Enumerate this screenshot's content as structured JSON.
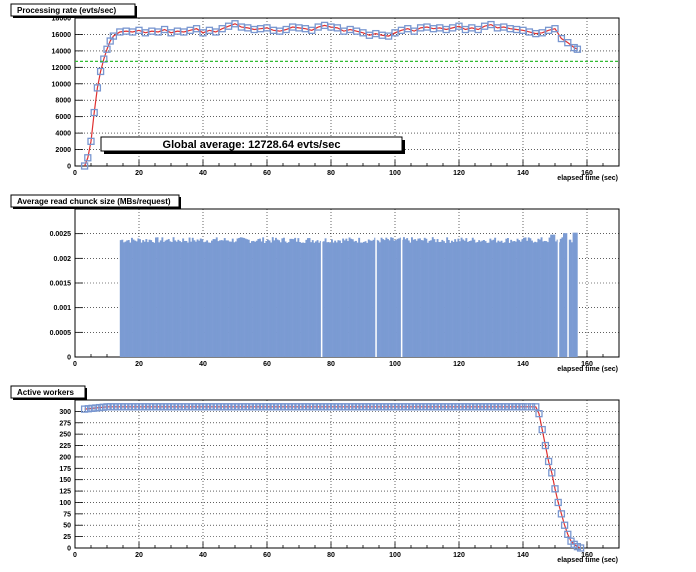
{
  "chart_data": [
    {
      "type": "line",
      "title": "Processing rate (evts/sec)",
      "xlabel": "elapsed time (sec)",
      "xlim": [
        0,
        170
      ],
      "ylim": [
        0,
        18000
      ],
      "xticks": [
        0,
        20,
        40,
        60,
        80,
        100,
        120,
        140,
        160
      ],
      "yticks": [
        0,
        2000,
        4000,
        6000,
        8000,
        10000,
        12000,
        14000,
        16000,
        18000
      ],
      "grid": true,
      "series": [
        {
          "x": [
            3,
            4,
            5,
            6,
            7,
            8,
            9,
            10,
            11,
            12,
            14,
            16,
            18,
            20,
            22,
            24,
            26,
            28,
            30,
            32,
            34,
            36,
            38,
            40,
            42,
            44,
            46,
            48,
            50,
            52,
            54,
            56,
            58,
            60,
            62,
            64,
            66,
            68,
            70,
            72,
            74,
            76,
            78,
            80,
            82,
            84,
            86,
            88,
            90,
            92,
            94,
            96,
            98,
            100,
            102,
            104,
            106,
            108,
            110,
            112,
            114,
            116,
            118,
            120,
            122,
            124,
            126,
            128,
            130,
            132,
            134,
            136,
            138,
            140,
            142,
            144,
            146,
            148,
            150,
            152,
            154,
            156,
            157
          ],
          "y": [
            0,
            1000,
            3000,
            6500,
            9500,
            11500,
            13000,
            14200,
            15200,
            15800,
            16300,
            16400,
            16300,
            16500,
            16200,
            16400,
            16300,
            16600,
            16200,
            16400,
            16300,
            16500,
            16700,
            16200,
            16500,
            16300,
            16700,
            17000,
            17300,
            16900,
            16800,
            16600,
            16700,
            16800,
            16500,
            16400,
            16600,
            16900,
            16800,
            16700,
            16500,
            16900,
            17100,
            16900,
            16800,
            16400,
            16600,
            16400,
            16200,
            15900,
            16100,
            15900,
            15800,
            16200,
            16500,
            16700,
            16400,
            16800,
            16900,
            16700,
            16800,
            16600,
            16800,
            17000,
            16600,
            16800,
            16600,
            17000,
            17200,
            16800,
            16900,
            16700,
            16600,
            16500,
            16300,
            16100,
            16200,
            16500,
            16700,
            15500,
            15000,
            14400,
            14200
          ]
        }
      ],
      "average_line": 12728.64,
      "annotation": "Global average: 12728.64 evts/sec",
      "colors": {
        "marker": "#7896d0",
        "line": "#e03030",
        "average": "#33bb33"
      }
    },
    {
      "type": "bar",
      "title": "Average read chunck size (MBs/request)",
      "xlabel": "elapsed time (sec)",
      "xlim": [
        0,
        170
      ],
      "ylim": [
        0,
        0.003
      ],
      "xticks": [
        0,
        20,
        40,
        60,
        80,
        100,
        120,
        140,
        160
      ],
      "yticks": [
        0,
        0.0005,
        0.001,
        0.0015,
        0.002,
        0.0025
      ],
      "ytick_labels": [
        "0",
        "0.0005",
        "0.001",
        "0.0015",
        "0.002",
        "0.0025"
      ],
      "grid": true,
      "fill_range": [
        14,
        157
      ],
      "typical_value": 0.00237,
      "gaps": [
        77,
        94,
        102,
        151,
        154
      ],
      "spikes": [
        {
          "x": 149,
          "y": 0.00248
        },
        {
          "x": 153,
          "y": 0.00251
        },
        {
          "x": 156,
          "y": 0.00252
        }
      ],
      "colors": {
        "fill": "#7b9bd3"
      }
    },
    {
      "type": "line",
      "title": "Active workers",
      "xlabel": "elapsed time (sec)",
      "xlim": [
        0,
        170
      ],
      "ylim": [
        0,
        325
      ],
      "xticks": [
        0,
        20,
        40,
        60,
        80,
        100,
        120,
        140,
        160
      ],
      "yticks": [
        0,
        25,
        50,
        75,
        100,
        125,
        150,
        175,
        200,
        225,
        250,
        275,
        300
      ],
      "grid": true,
      "series": [
        {
          "x": [
            3,
            10,
            20,
            40,
            60,
            80,
            100,
            120,
            140,
            144,
            145,
            146,
            147,
            148,
            149,
            150,
            151,
            152,
            153,
            154,
            155,
            156,
            157,
            158
          ],
          "y": [
            305,
            310,
            310,
            310,
            310,
            310,
            310,
            310,
            310,
            310,
            295,
            260,
            225,
            190,
            165,
            130,
            100,
            75,
            50,
            30,
            15,
            8,
            3,
            0
          ]
        }
      ],
      "colors": {
        "marker": "#7896d0",
        "line": "#e03030"
      }
    }
  ]
}
